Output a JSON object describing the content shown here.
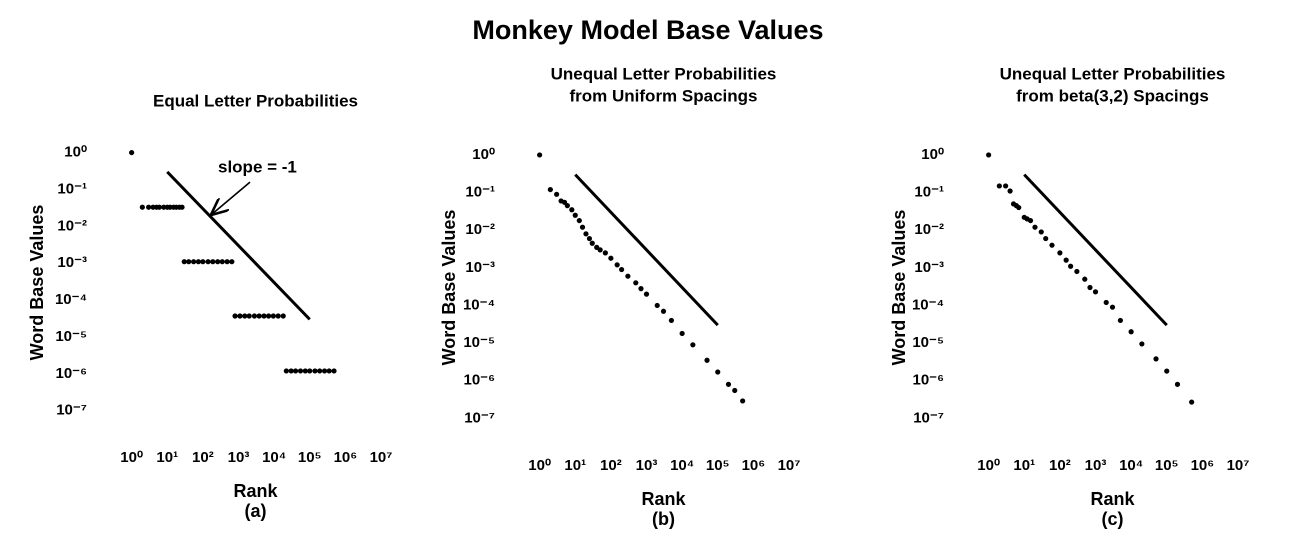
{
  "title": "Monkey Model Base Values",
  "chart_data": [
    {
      "type": "scatter",
      "title": [
        "Equal Letter Probabilities"
      ],
      "x_label": "Rank",
      "panel_label": "(a)",
      "y_label": "Word Base Values",
      "log_x": true,
      "log_y": true,
      "color": "#000000",
      "xlim": [
        0.3,
        30000000
      ],
      "ylim": [
        3e-08,
        3
      ],
      "xticks": [
        {
          "value": 1,
          "label": "10⁰"
        },
        {
          "value": 10,
          "label": "10¹"
        },
        {
          "value": 100,
          "label": "10²"
        },
        {
          "value": 1000,
          "label": "10³"
        },
        {
          "value": 10000,
          "label": "10⁴"
        },
        {
          "value": 100000,
          "label": "10⁵"
        },
        {
          "value": 1000000,
          "label": "10⁶"
        },
        {
          "value": 10000000,
          "label": "10⁷"
        }
      ],
      "yticks": [
        {
          "value": 1,
          "label": "10⁰"
        },
        {
          "value": 0.1,
          "label": "10⁻¹"
        },
        {
          "value": 0.01,
          "label": "10⁻²"
        },
        {
          "value": 0.001,
          "label": "10⁻³"
        },
        {
          "value": 0.0001,
          "label": "10⁻⁴"
        },
        {
          "value": 1e-05,
          "label": "10⁻⁵"
        },
        {
          "value": 1e-06,
          "label": "10⁻⁶"
        },
        {
          "value": 1e-07,
          "label": "10⁻⁷"
        }
      ],
      "x": [
        1,
        2,
        3,
        4,
        5,
        6,
        8,
        10,
        12,
        15,
        18,
        22,
        26,
        30,
        40,
        55,
        75,
        100,
        140,
        190,
        260,
        350,
        480,
        650,
        800,
        1100,
        1500,
        2000,
        2800,
        3800,
        5200,
        7000,
        9500,
        13000,
        18000,
        22000,
        30000,
        40000,
        55000,
        75000,
        100000,
        140000,
        190000,
        260000,
        350000,
        480000
      ],
      "y": [
        1,
        0.033,
        0.033,
        0.033,
        0.033,
        0.033,
        0.033,
        0.033,
        0.033,
        0.033,
        0.033,
        0.033,
        0.033,
        0.0011,
        0.0011,
        0.0011,
        0.0011,
        0.0011,
        0.0011,
        0.0011,
        0.0011,
        0.0011,
        0.0011,
        0.0011,
        3.7e-05,
        3.7e-05,
        3.7e-05,
        3.7e-05,
        3.7e-05,
        3.7e-05,
        3.7e-05,
        3.7e-05,
        3.7e-05,
        3.7e-05,
        3.7e-05,
        1.2e-06,
        1.2e-06,
        1.2e-06,
        1.2e-06,
        1.2e-06,
        1.2e-06,
        1.2e-06,
        1.2e-06,
        1.2e-06,
        1.2e-06,
        1.2e-06
      ],
      "reference_line": {
        "x": [
          10,
          100000
        ],
        "y": [
          0.3,
          3e-05
        ]
      },
      "annotation": "slope = -1"
    },
    {
      "type": "scatter",
      "title": [
        "Unequal Letter Probabilities",
        "from Uniform Spacings"
      ],
      "x_label": "Rank",
      "panel_label": "(b)",
      "y_label": "Word Base Values",
      "log_x": true,
      "log_y": true,
      "color": "#000000",
      "xlim": [
        0.3,
        30000000
      ],
      "ylim": [
        3e-08,
        3
      ],
      "xticks": [
        {
          "value": 1,
          "label": "10⁰"
        },
        {
          "value": 10,
          "label": "10¹"
        },
        {
          "value": 100,
          "label": "10²"
        },
        {
          "value": 1000,
          "label": "10³"
        },
        {
          "value": 10000,
          "label": "10⁴"
        },
        {
          "value": 100000,
          "label": "10⁵"
        },
        {
          "value": 1000000,
          "label": "10⁶"
        },
        {
          "value": 10000000,
          "label": "10⁷"
        }
      ],
      "yticks": [
        {
          "value": 1,
          "label": "10⁰"
        },
        {
          "value": 0.1,
          "label": "10⁻¹"
        },
        {
          "value": 0.01,
          "label": "10⁻²"
        },
        {
          "value": 0.001,
          "label": "10⁻³"
        },
        {
          "value": 0.0001,
          "label": "10⁻⁴"
        },
        {
          "value": 1e-05,
          "label": "10⁻⁵"
        },
        {
          "value": 1e-06,
          "label": "10⁻⁶"
        },
        {
          "value": 1e-07,
          "label": "10⁻⁷"
        }
      ],
      "x": [
        1,
        2,
        3,
        4,
        5,
        6,
        8,
        10,
        13,
        16,
        20,
        25,
        30,
        40,
        50,
        70,
        100,
        150,
        200,
        300,
        500,
        700,
        1000,
        2000,
        3000,
        5000,
        10000,
        20000,
        50000,
        100000,
        200000,
        300000,
        500000
      ],
      "y": [
        1,
        0.12,
        0.09,
        0.06,
        0.055,
        0.045,
        0.035,
        0.025,
        0.018,
        0.012,
        0.008,
        0.006,
        0.0045,
        0.0035,
        0.003,
        0.0025,
        0.0018,
        0.0012,
        0.0009,
        0.0006,
        0.0004,
        0.00028,
        0.0002,
        0.0001,
        7e-05,
        4e-05,
        1.8e-05,
        9e-06,
        3.5e-06,
        1.7e-06,
        8e-07,
        5.5e-07,
        2.9e-07
      ],
      "reference_line": {
        "x": [
          10,
          100000
        ],
        "y": [
          0.3,
          3e-05
        ]
      }
    },
    {
      "type": "scatter",
      "title": [
        "Unequal Letter Probabilities",
        "from beta(3,2) Spacings"
      ],
      "x_label": "Rank",
      "panel_label": "(c)",
      "y_label": "Word Base Values",
      "log_x": true,
      "log_y": true,
      "color": "#000000",
      "xlim": [
        0.3,
        30000000
      ],
      "ylim": [
        3e-08,
        3
      ],
      "xticks": [
        {
          "value": 1,
          "label": "10⁰"
        },
        {
          "value": 10,
          "label": "10¹"
        },
        {
          "value": 100,
          "label": "10²"
        },
        {
          "value": 1000,
          "label": "10³"
        },
        {
          "value": 10000,
          "label": "10⁴"
        },
        {
          "value": 100000,
          "label": "10⁵"
        },
        {
          "value": 1000000,
          "label": "10⁶"
        },
        {
          "value": 10000000,
          "label": "10⁷"
        }
      ],
      "yticks": [
        {
          "value": 1,
          "label": "10⁰"
        },
        {
          "value": 0.1,
          "label": "10⁻¹"
        },
        {
          "value": 0.01,
          "label": "10⁻²"
        },
        {
          "value": 0.001,
          "label": "10⁻³"
        },
        {
          "value": 0.0001,
          "label": "10⁻⁴"
        },
        {
          "value": 1e-05,
          "label": "10⁻⁵"
        },
        {
          "value": 1e-06,
          "label": "10⁻⁶"
        },
        {
          "value": 1e-07,
          "label": "10⁻⁷"
        }
      ],
      "x": [
        1,
        2,
        3,
        4,
        5,
        6,
        7,
        10,
        12,
        15,
        20,
        30,
        40,
        60,
        100,
        150,
        200,
        300,
        500,
        700,
        1000,
        2000,
        3000,
        5000,
        10000,
        20000,
        50000,
        100000,
        200000,
        500000
      ],
      "y": [
        1,
        0.15,
        0.15,
        0.11,
        0.05,
        0.045,
        0.04,
        0.022,
        0.02,
        0.018,
        0.012,
        0.009,
        0.006,
        0.004,
        0.0025,
        0.0016,
        0.0011,
        0.0008,
        0.0005,
        0.0003,
        0.00023,
        0.00012,
        9e-05,
        4e-05,
        2e-05,
        9.5e-06,
        3.8e-06,
        1.8e-06,
        8e-07,
        2.7e-07
      ],
      "reference_line": {
        "x": [
          10,
          100000
        ],
        "y": [
          0.3,
          3e-05
        ]
      }
    }
  ]
}
